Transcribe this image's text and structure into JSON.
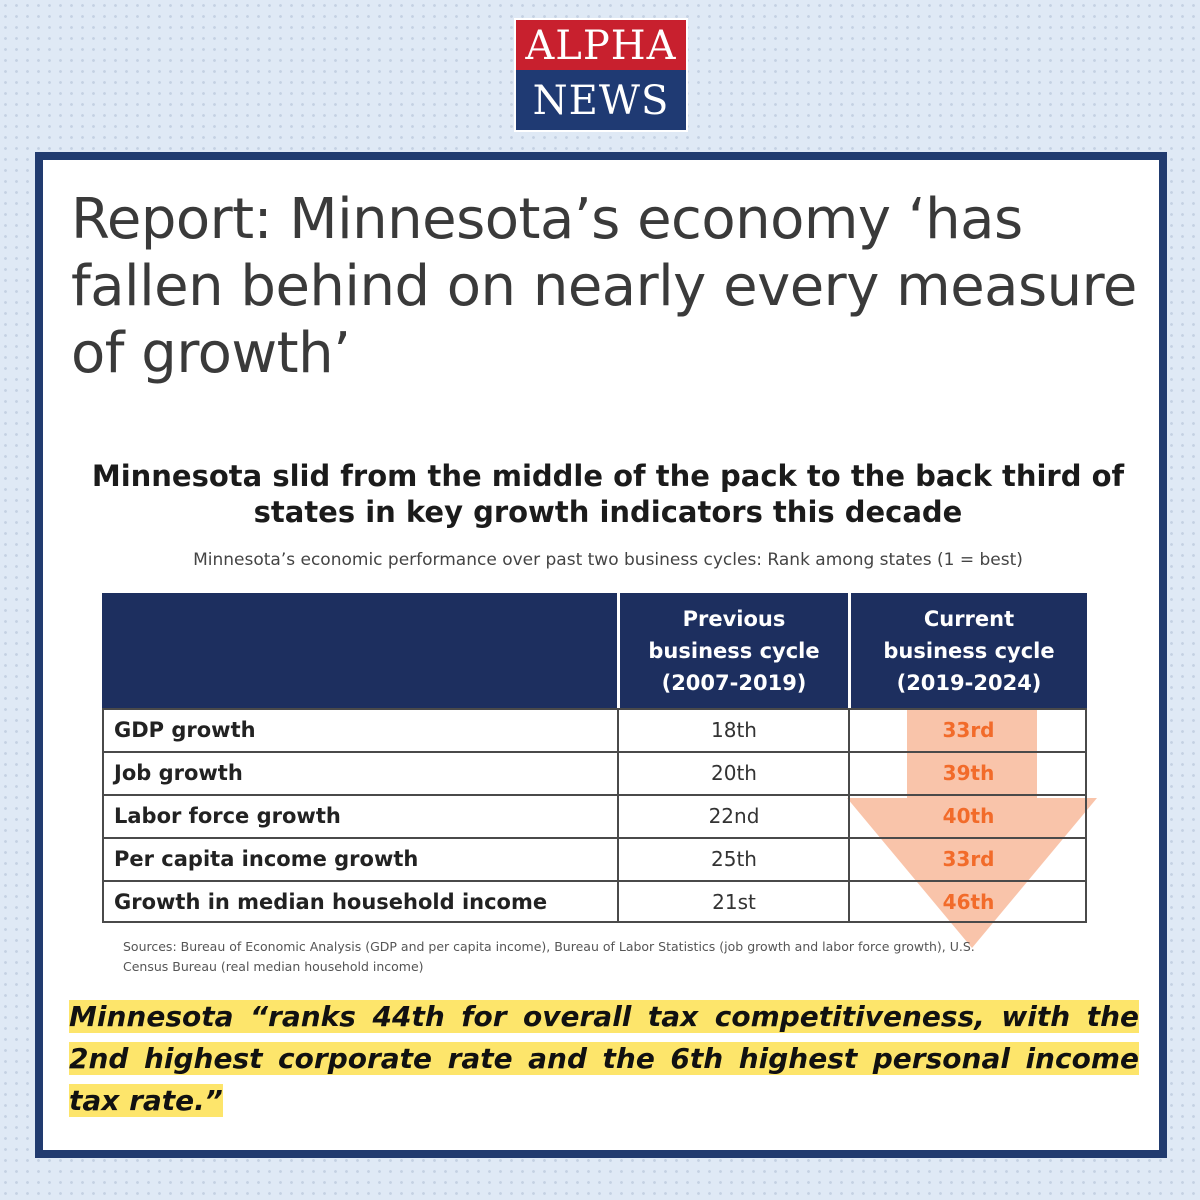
{
  "brand": {
    "line1": "ALPHA",
    "line2": "NEWS",
    "red": "#c8202e",
    "navy": "#1f3a73"
  },
  "headline": "Report: Minnesota’s economy ‘has fallen behind on nearly every measure of growth’",
  "chart_data": {
    "type": "table",
    "title": "Minnesota slid from the middle of the pack to the back third of states in key growth indicators this decade",
    "subtitle": "Minnesota’s economic performance over past two business cycles: Rank among states (1 = best)",
    "columns": [
      "",
      "Previous business cycle (2007-2019)",
      "Current business cycle (2019-2024)"
    ],
    "header_lines": {
      "previous": [
        "Previous",
        "business cycle",
        "(2007-2019)"
      ],
      "current": [
        "Current",
        "business cycle",
        "(2019-2024)"
      ]
    },
    "rows": [
      {
        "label": "GDP growth",
        "previous": "18th",
        "current": "33rd"
      },
      {
        "label": "Job growth",
        "previous": "20th",
        "current": "39th"
      },
      {
        "label": "Labor force growth",
        "previous": "22nd",
        "current": "40th"
      },
      {
        "label": "Per capita income growth",
        "previous": "25th",
        "current": "33rd"
      },
      {
        "label": "Growth in median household income",
        "previous": "21st",
        "current": "46th"
      }
    ],
    "sources": "Sources: Bureau of Economic Analysis (GDP and per capita income), Bureau of Labor Statistics (job growth and labor force growth), U.S. Census Bureau (real median household income)",
    "colors": {
      "header": "#1d2f5f",
      "current_rank": "#f26b2a",
      "arrow": "#f7b08e"
    }
  },
  "quote": "Minnesota “ranks 44th for overall tax competitiveness, with the 2nd highest corporate rate and the 6th highest personal income tax rate.”"
}
